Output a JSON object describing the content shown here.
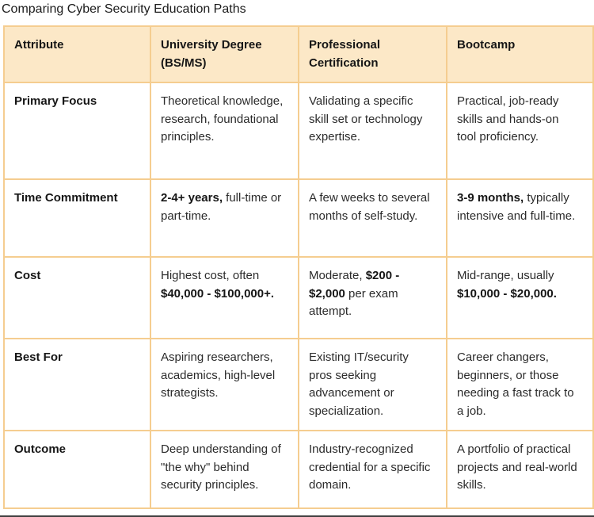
{
  "page": {
    "title": "Comparing Cyber Security Education Paths"
  },
  "colors": {
    "border": "#f5cd90",
    "header_bg": "#fce8c7",
    "title_text": "#1b1b1b",
    "body_text": "#2b2b2b",
    "bottom_edge": "#3f3f3f"
  },
  "table": {
    "headers": [
      "Attribute",
      "University Degree (BS/MS)",
      "Professional Certification",
      "Bootcamp"
    ],
    "rows": [
      {
        "attribute": "Primary Focus",
        "cells": [
          [
            {
              "text": "Theoretical knowledge, research, foundational principles.",
              "bold": false
            }
          ],
          [
            {
              "text": "Validating a specific skill set or technology expertise.",
              "bold": false
            }
          ],
          [
            {
              "text": "Practical, job-ready skills and hands-on tool proficiency.",
              "bold": false
            }
          ]
        ]
      },
      {
        "attribute": "Time Commitment",
        "cells": [
          [
            {
              "text": "2-4+ years,",
              "bold": true
            },
            {
              "text": " full-time or part-time.",
              "bold": false
            }
          ],
          [
            {
              "text": "A few weeks to several months of self-study.",
              "bold": false
            }
          ],
          [
            {
              "text": "3-9 months,",
              "bold": true
            },
            {
              "text": " typically intensive and full-time.",
              "bold": false
            }
          ]
        ]
      },
      {
        "attribute": "Cost",
        "cells": [
          [
            {
              "text": "Highest cost, often ",
              "bold": false
            },
            {
              "text": "$40,000 - $100,000+.",
              "bold": true
            }
          ],
          [
            {
              "text": "Moderate, ",
              "bold": false
            },
            {
              "text": "$200 - $2,000",
              "bold": true
            },
            {
              "text": " per exam attempt.",
              "bold": false
            }
          ],
          [
            {
              "text": "Mid-range, usually ",
              "bold": false
            },
            {
              "text": "$10,000 - $20,000.",
              "bold": true
            }
          ]
        ]
      },
      {
        "attribute": "Best For",
        "cells": [
          [
            {
              "text": "Aspiring researchers, academics, high-level strategists.",
              "bold": false
            }
          ],
          [
            {
              "text": "Existing IT/security pros seeking advancement or specialization.",
              "bold": false
            }
          ],
          [
            {
              "text": "Career changers, beginners, or those needing a fast track to a job.",
              "bold": false
            }
          ]
        ]
      },
      {
        "attribute": "Outcome",
        "cells": [
          [
            {
              "text": "Deep understanding of \"the why\" behind security principles.",
              "bold": false
            }
          ],
          [
            {
              "text": "Industry-recognized credential for a specific domain.",
              "bold": false
            }
          ],
          [
            {
              "text": "A portfolio of practical projects and real-world skills.",
              "bold": false
            }
          ]
        ]
      }
    ]
  }
}
